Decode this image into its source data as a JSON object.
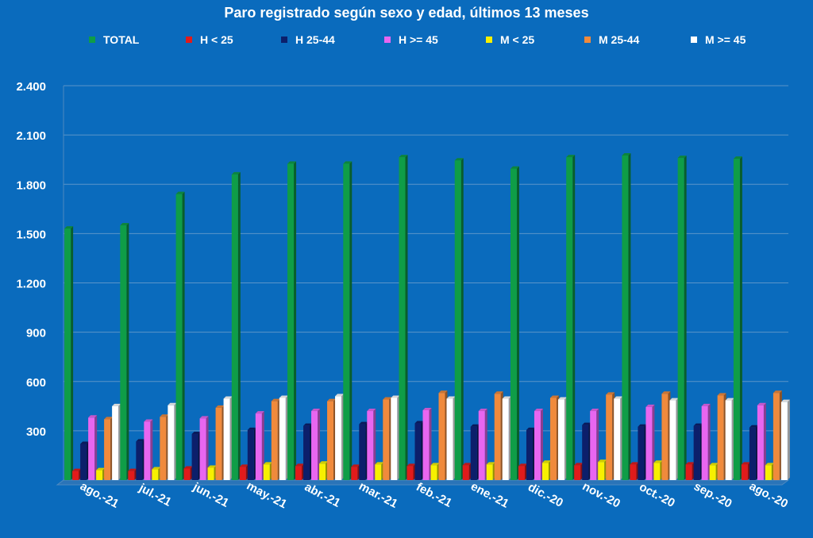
{
  "chart_data": {
    "type": "bar",
    "title": "Paro registrado según sexo y edad, últimos 13 meses",
    "categories": [
      "ago.-21",
      "jul.-21",
      "jun.-21",
      "may.-21",
      "abr.-21",
      "mar.-21",
      "feb.-21",
      "ene.-21",
      "dic.-20",
      "nov.-20",
      "oct.-20",
      "sep.-20",
      "ago.-20"
    ],
    "ylim": [
      0,
      2400
    ],
    "yticks": [
      300,
      600,
      900,
      1200,
      1500,
      1800,
      2100,
      2400
    ],
    "ytick_labels": [
      "300",
      "600",
      "900",
      "1.200",
      "1.500",
      "1.800",
      "2.100",
      "2.400"
    ],
    "grid": true,
    "legend_position": "top",
    "series": [
      {
        "name": "TOTAL",
        "color": "#0f9d47",
        "values": [
          1530,
          1550,
          1740,
          1860,
          1925,
          1925,
          1965,
          1945,
          1895,
          1965,
          1975,
          1960,
          1955
        ]
      },
      {
        "name": "H < 25",
        "color": "#e11b1b",
        "values": [
          55,
          55,
          70,
          80,
          85,
          80,
          85,
          90,
          85,
          90,
          95,
          95,
          95
        ]
      },
      {
        "name": "H 25-44",
        "color": "#0c1f6b",
        "values": [
          220,
          235,
          280,
          305,
          330,
          340,
          345,
          325,
          305,
          335,
          325,
          330,
          320
        ]
      },
      {
        "name": "H >= 45",
        "color": "#e866f0",
        "values": [
          380,
          355,
          375,
          405,
          420,
          420,
          425,
          420,
          420,
          420,
          445,
          450,
          455
        ]
      },
      {
        "name": "M < 25",
        "color": "#f7f000",
        "values": [
          60,
          65,
          75,
          95,
          100,
          95,
          90,
          95,
          105,
          110,
          105,
          90,
          90
        ]
      },
      {
        "name": "M 25-44",
        "color": "#f08a3c",
        "values": [
          370,
          385,
          440,
          480,
          480,
          490,
          530,
          525,
          500,
          520,
          525,
          515,
          530
        ]
      },
      {
        "name": "M >= 45",
        "color": "#ffffff",
        "values": [
          450,
          455,
          495,
          500,
          510,
          500,
          495,
          495,
          490,
          495,
          485,
          485,
          475
        ]
      }
    ]
  }
}
